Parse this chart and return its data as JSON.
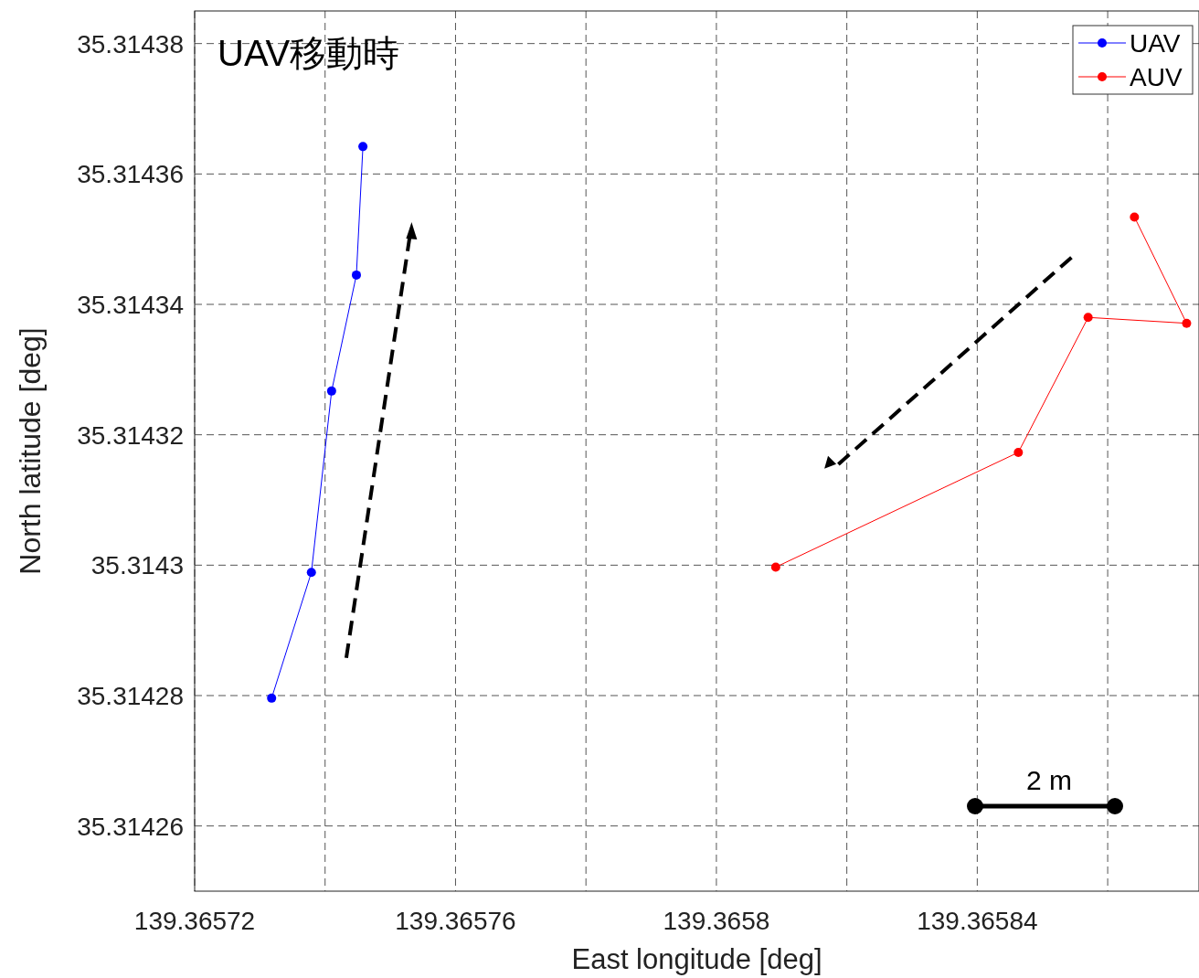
{
  "chart_data": {
    "type": "line",
    "title": "UAV移動時",
    "xlabel": "East longitude [deg]",
    "ylabel": "North latitude [deg]",
    "xlim": [
      139.36572,
      139.365874
    ],
    "ylim": [
      35.31425,
      35.314385
    ],
    "xticks": [
      139.36572,
      {
        "value": 139.36574,
        "label": null
      },
      139.36576,
      {
        "value": 139.36578,
        "label": null
      },
      139.3658,
      {
        "value": 139.36582,
        "label": null
      },
      139.36584,
      {
        "value": 139.36586,
        "label": null
      }
    ],
    "yticks": [
      35.31426,
      35.31428,
      35.3143,
      35.31432,
      35.31434,
      35.31436,
      35.31438
    ],
    "grid": true,
    "legend": "top right",
    "marker": "circle",
    "line_style": "solid",
    "annotations": [
      "2 m"
    ],
    "series": [
      {
        "name": "UAV",
        "color": "#0000ff",
        "x": [
          139.3657318,
          139.3657379,
          139.365741,
          139.3657448,
          139.3657458
        ],
        "values": [
          35.3142796,
          35.3142989,
          35.3143267,
          35.3143445,
          35.3143642
        ]
      },
      {
        "name": "AUV",
        "color": "#ff0000",
        "x": [
          139.3658091,
          139.3658463,
          139.365857,
          139.3658721,
          139.3658641
        ],
        "values": [
          35.3142997,
          35.3143173,
          35.314338,
          35.3143371,
          35.3143534
        ]
      }
    ]
  }
}
